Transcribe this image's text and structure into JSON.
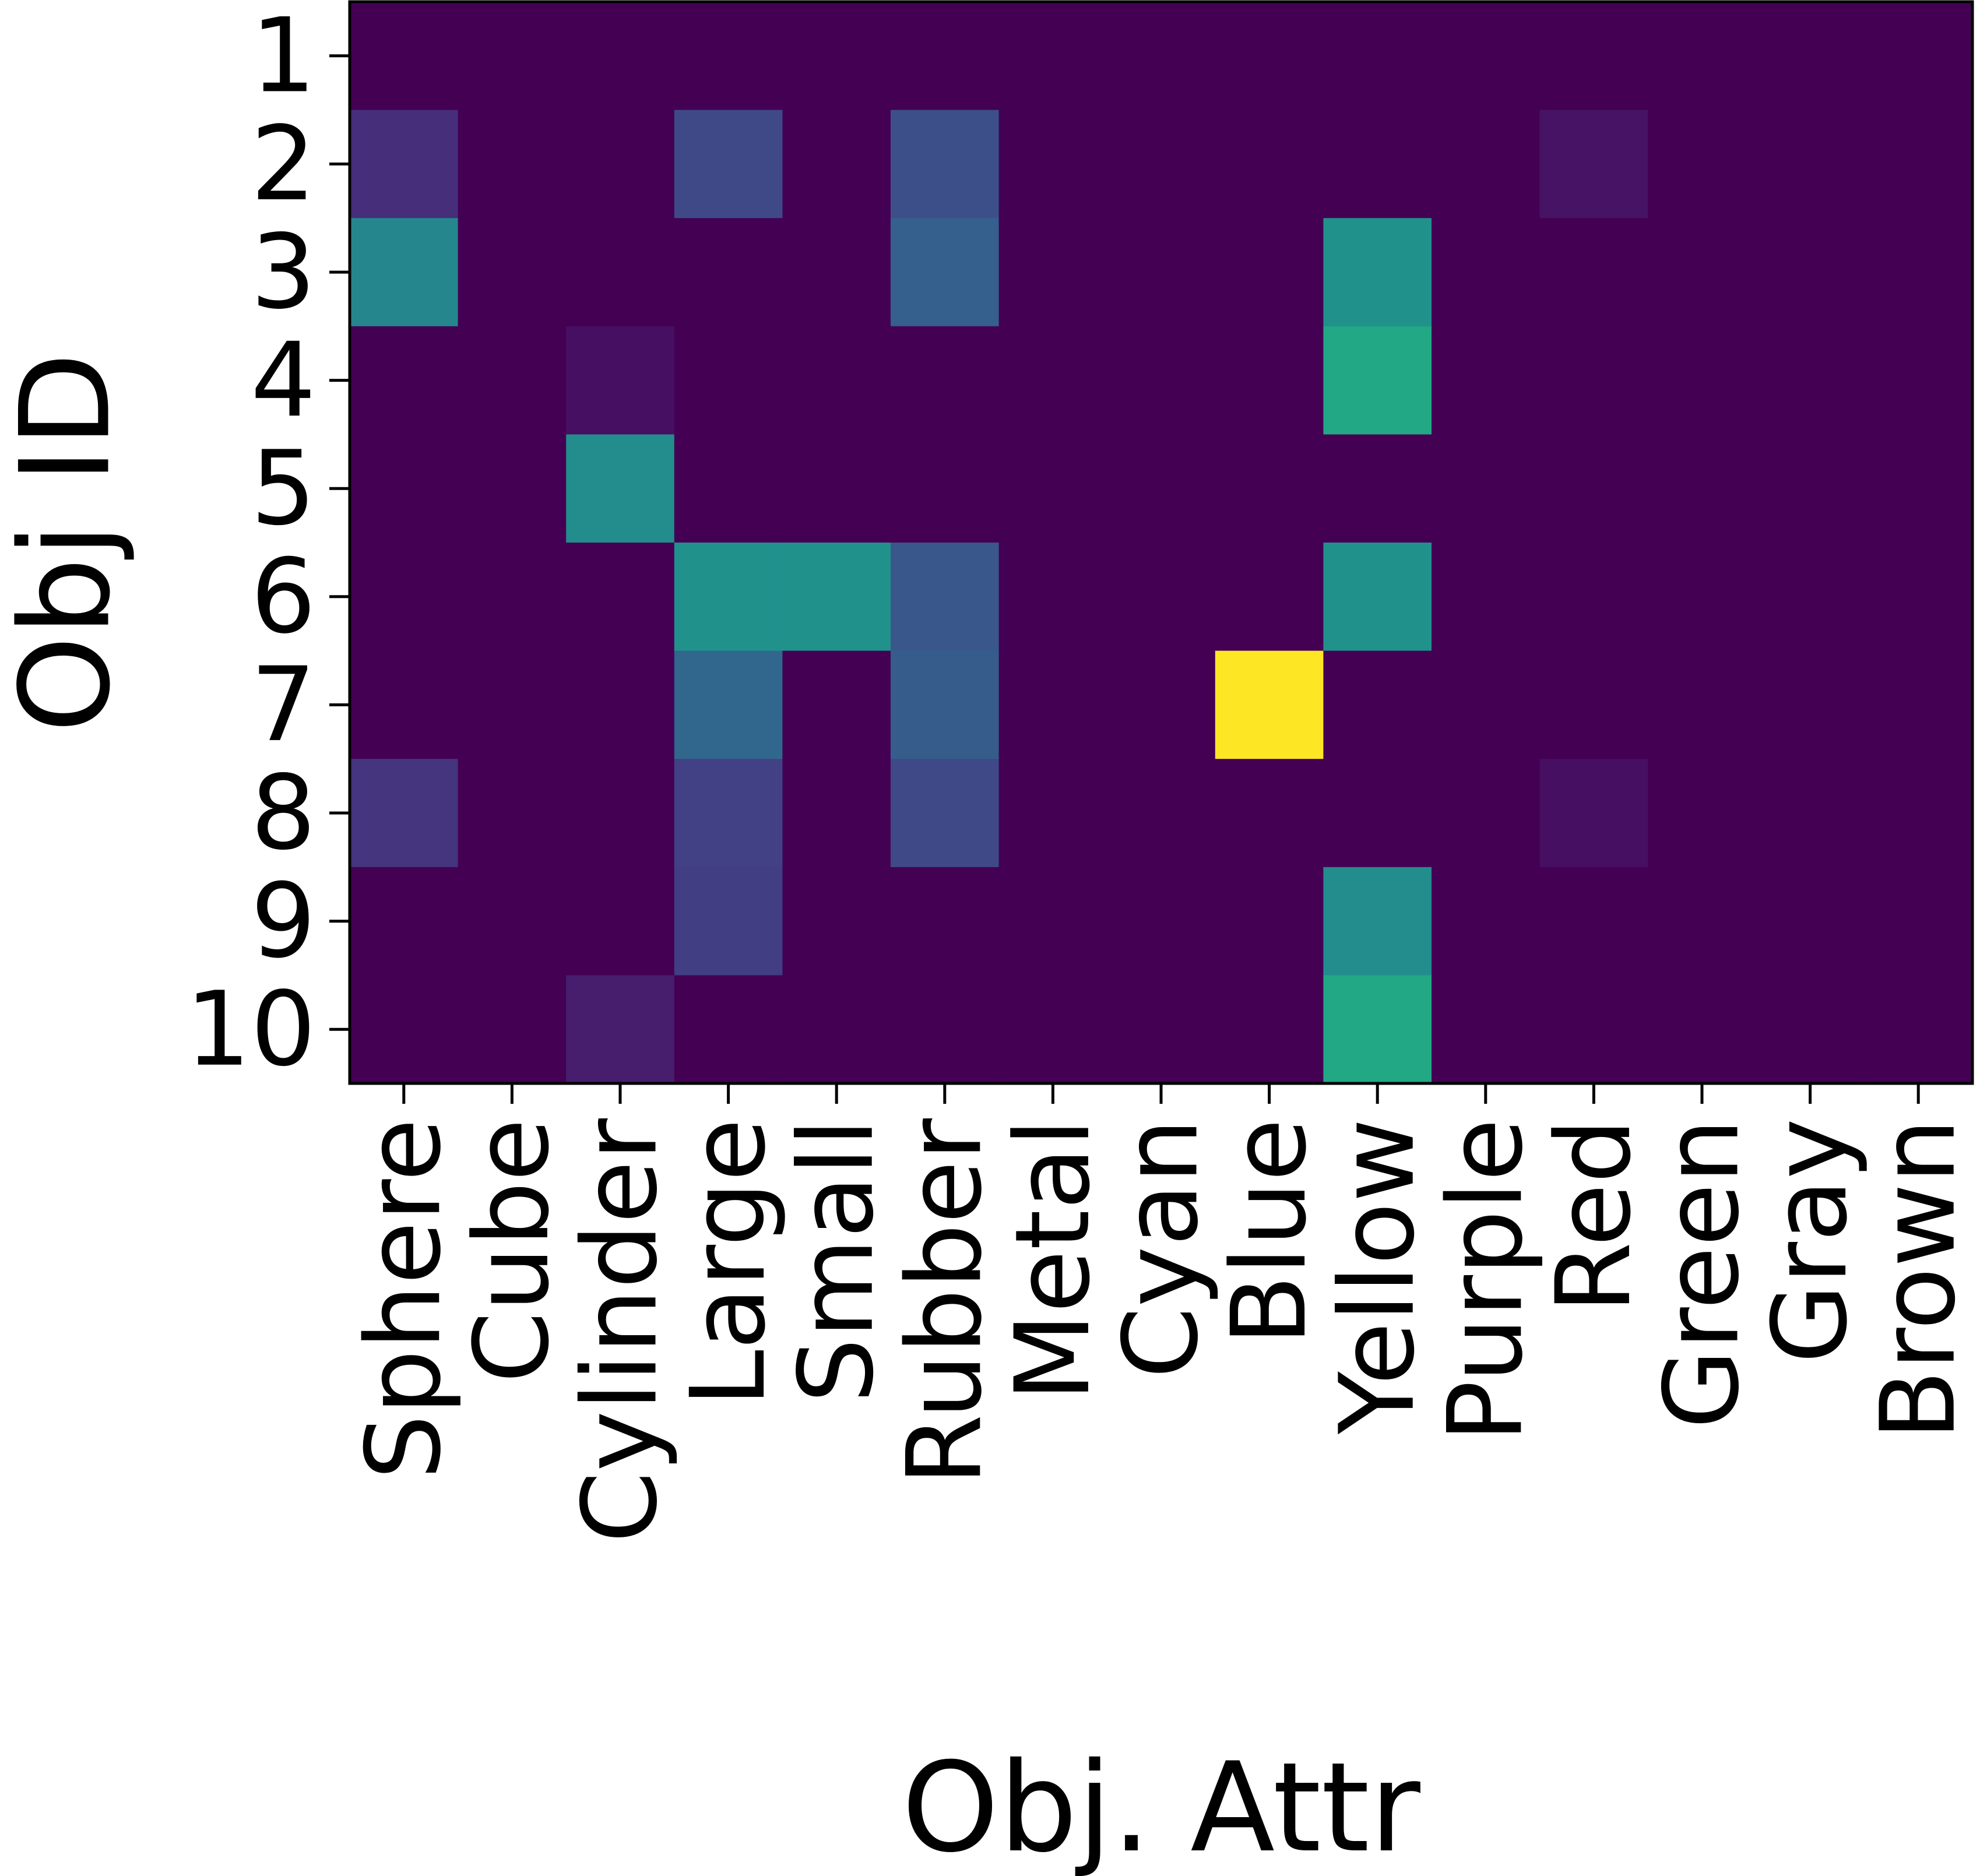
{
  "chart_data": {
    "type": "heatmap",
    "xlabel": "Obj. Attr",
    "ylabel": "Obj ID",
    "x_categories": [
      "Sphere",
      "Cube",
      "Cylinder",
      "Large",
      "Small",
      "Rubber",
      "Metal",
      "Cyan",
      "Blue",
      "Yellow",
      "Purple",
      "Red",
      "Green",
      "Gray",
      "Brown"
    ],
    "y_categories": [
      "1",
      "2",
      "3",
      "4",
      "5",
      "6",
      "7",
      "8",
      "9",
      "10"
    ],
    "colormap": "viridis",
    "color_range": [
      0,
      1
    ],
    "values": [
      [
        0,
        0,
        0,
        0,
        0,
        0,
        0,
        0,
        0,
        0,
        0,
        0,
        0,
        0,
        0
      ],
      [
        0.13,
        0,
        0,
        0.22,
        0,
        0.24,
        0,
        0,
        0,
        0,
        0,
        0.05,
        0,
        0,
        0
      ],
      [
        0.46,
        0,
        0,
        0,
        0,
        0.3,
        0,
        0,
        0,
        0.5,
        0,
        0,
        0,
        0,
        0
      ],
      [
        0,
        0,
        0.04,
        0,
        0,
        0,
        0,
        0,
        0,
        0.6,
        0,
        0,
        0,
        0,
        0
      ],
      [
        0,
        0,
        0.48,
        0,
        0,
        0,
        0,
        0,
        0,
        0,
        0,
        0,
        0,
        0,
        0
      ],
      [
        0,
        0,
        0,
        0.5,
        0.5,
        0.27,
        0,
        0,
        0,
        0.5,
        0,
        0,
        0,
        0,
        0
      ],
      [
        0,
        0,
        0,
        0.33,
        0,
        0.29,
        0,
        0,
        1.0,
        0,
        0,
        0,
        0,
        0,
        0
      ],
      [
        0.15,
        0,
        0,
        0.19,
        0,
        0.22,
        0,
        0,
        0,
        0,
        0,
        0.04,
        0,
        0,
        0
      ],
      [
        0,
        0,
        0,
        0.18,
        0,
        0,
        0,
        0,
        0,
        0.48,
        0,
        0,
        0,
        0,
        0
      ],
      [
        0,
        0,
        0.08,
        0,
        0,
        0,
        0,
        0,
        0,
        0.6,
        0,
        0,
        0,
        0,
        0
      ]
    ]
  }
}
